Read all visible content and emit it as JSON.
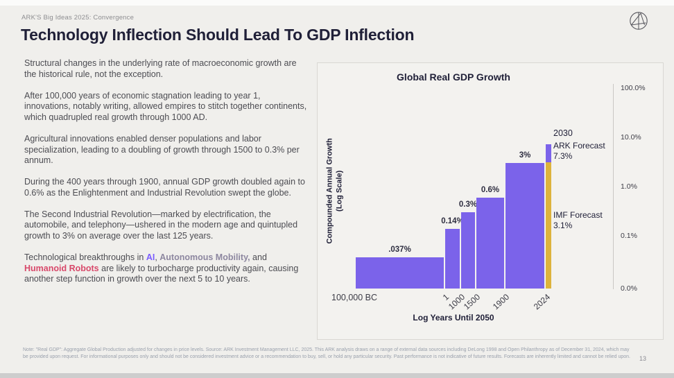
{
  "slide": {
    "eyebrow": "ARK'S Big Ideas 2025: Convergence",
    "title": "Technology Inflection Should Lead To GDP Inflection",
    "page_number": "13",
    "footnote": "Note: \"Real GDP\": Aggregate Global Production adjusted for changes in price levels. Source: ARK Investment Management LLC, 2025. This ARK analysis draws on a range of external data sources including DeLong 1998 and Open Philanthropy as of December 31, 2024, which may be provided upon request. For informational purposes only and should not be considered investment advice or a recommendation to buy, sell, or hold any particular security. Past performance is not indicative of future results. Forecasts are inherently limited and cannot be relied upon."
  },
  "body": {
    "paragraphs": [
      "Structural changes in the underlying rate of macroeconomic growth are the historical rule, not the exception.",
      "After 100,000 years of economic stagnation leading to year 1, innovations, notably writing, allowed empires to stitch together continents, which quadrupled real growth through 1000 AD.",
      "Agricultural innovations enabled denser populations and labor specialization, leading to a doubling of growth through 1500 to 0.3% per annum.",
      "During the 400 years through 1900, annual GDP growth doubled again to 0.6% as the Enlightenment and Industrial Revolution swept the globe.",
      "The Second Industrial Revolution—marked by electrification, the automobile, and telephony—ushered in the modern age and quintupled growth to 3% on average over the last 125 years."
    ],
    "p6": {
      "prefix": "Technological breakthroughs in ",
      "ai": "AI",
      "sep1": ", ",
      "mobility": "Autonomous Mobility,",
      "sep2": " and ",
      "robots": "Humanoid Robots",
      "suffix": " are likely to turbocharge productivity again, causing another step function in growth over the next 5 to 10 years."
    }
  },
  "chart_data": {
    "type": "bar",
    "title": "Global Real GDP Growth",
    "ylabel": "Compounded Annual Growth",
    "ylabel_sub": "(Log Scale)",
    "xlabel": "Log Years Until 2050",
    "scale": "log",
    "y_axis_ticks": [
      "100.0%",
      "10.0%",
      "1.0%",
      "0.1%",
      "0.0%"
    ],
    "x_ticks": [
      "100,000 BC",
      "1",
      "1000",
      "1500",
      "1900",
      "2024"
    ],
    "bars": [
      {
        "period": "100,000 BC to 1",
        "label": ".037%",
        "value": 0.037,
        "color": "purple"
      },
      {
        "period": "1 to 1000",
        "label": "0.14%",
        "value": 0.14,
        "color": "purple"
      },
      {
        "period": "1000 to 1500",
        "label": "0.3%",
        "value": 0.3,
        "color": "purple"
      },
      {
        "period": "1500 to 1900",
        "label": "0.6%",
        "value": 0.6,
        "color": "purple"
      },
      {
        "period": "1900 to 2024",
        "label": "3%",
        "value": 3,
        "color": "purple"
      },
      {
        "period": "2024 to 2030 ARK Forecast",
        "label": "7.3%",
        "value": 7.3,
        "color": "purple"
      },
      {
        "period": "2024 to 2030 IMF Forecast",
        "label": "3.1%",
        "value": 3.1,
        "color": "gold"
      }
    ],
    "annotations": {
      "year": "2030",
      "ark_label": "ARK Forecast",
      "ark_value": "7.3%",
      "imf_label": "IMF Forecast",
      "imf_value": "3.1%"
    },
    "colors": {
      "bar_purple": "#7b63ea",
      "bar_gold": "#ddb33c"
    }
  }
}
